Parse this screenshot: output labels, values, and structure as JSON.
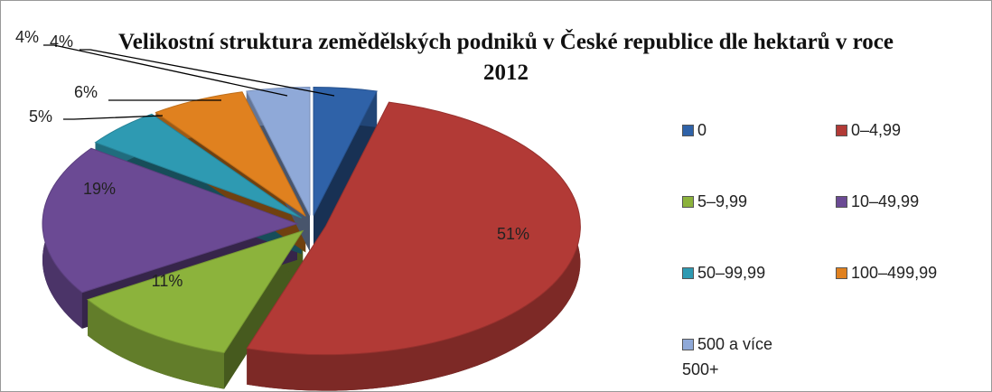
{
  "chart_data": {
    "type": "pie",
    "title": "Velikostní struktura zemědělských podniků v České republice dle hektarů v roce 2012",
    "categories": [
      "0",
      "0–4,99",
      "5–9,99",
      "10–49,99",
      "50–99,99",
      "100–499,99",
      "500 a více 500+"
    ],
    "values": [
      4,
      51,
      11,
      19,
      5,
      6,
      4
    ],
    "value_labels": [
      "4%",
      "51%",
      "11%",
      "19%",
      "5%",
      "6%",
      "4%"
    ],
    "colors": [
      "#2f62a8",
      "#b23a36",
      "#8cb33c",
      "#6b4a94",
      "#2e9ab2",
      "#e0811f",
      "#8fa9d8"
    ],
    "legend": "right"
  }
}
